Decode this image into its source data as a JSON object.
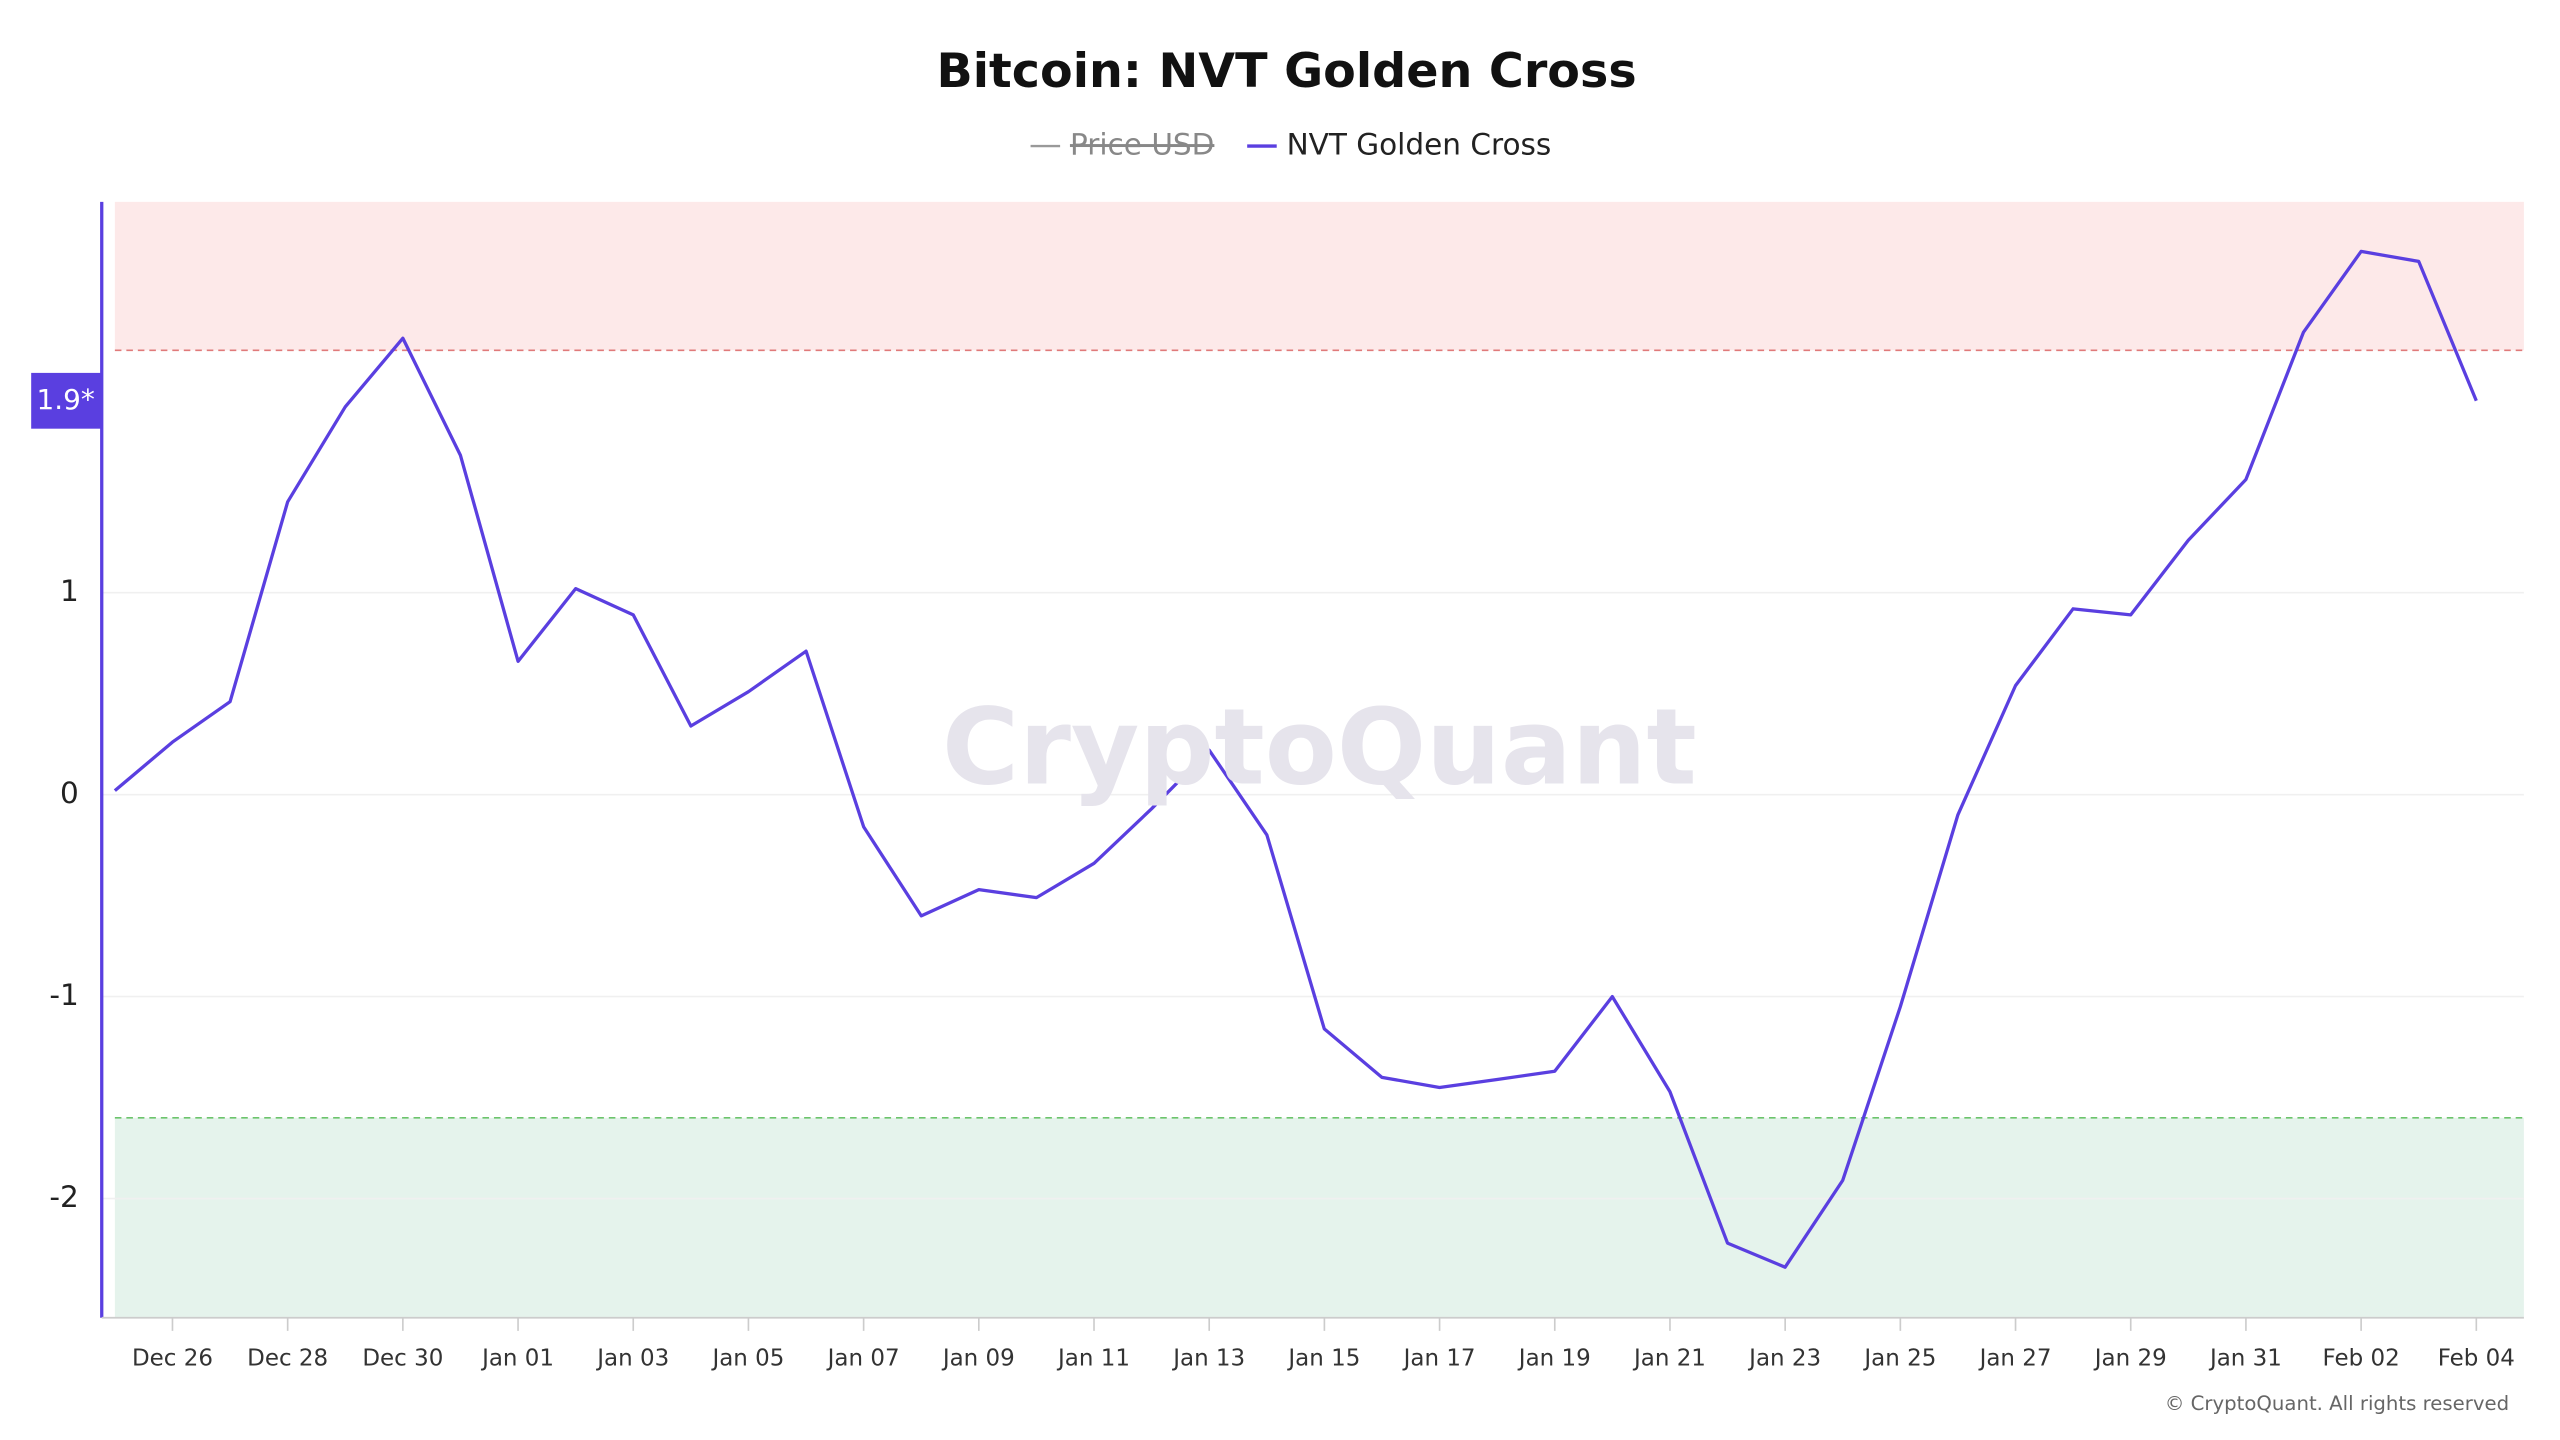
{
  "chart_data": {
    "type": "line",
    "title": "Bitcoin: NVT Golden Cross",
    "hidden_series": {
      "name": "Price USD",
      "color": "#999999"
    },
    "categories": [
      null,
      "Dec 26",
      null,
      "Dec 28",
      null,
      "Dec 30",
      null,
      "Jan 01",
      null,
      "Jan 03",
      null,
      "Jan 05",
      null,
      "Jan 07",
      null,
      "Jan 09",
      null,
      "Jan 11",
      null,
      "Jan 13",
      null,
      "Jan 15",
      null,
      "Jan 17",
      null,
      "Jan 19",
      null,
      "Jan 21",
      null,
      "Jan 23",
      null,
      "Jan 25",
      null,
      "Jan 27",
      null,
      "Jan 29",
      null,
      "Jan 31",
      null,
      "Feb 02",
      null,
      "Feb 04"
    ],
    "series": [
      {
        "name": "NVT Golden Cross",
        "color": "#5a3fe0",
        "values": [
          0.02,
          0.26,
          0.46,
          1.45,
          1.92,
          2.26,
          1.68,
          0.66,
          1.02,
          0.89,
          0.34,
          0.51,
          0.71,
          -0.16,
          -0.6,
          -0.47,
          -0.51,
          -0.34,
          -0.07,
          0.22,
          -0.2,
          -1.16,
          -1.4,
          -1.45,
          -1.41,
          -1.37,
          -1.0,
          -1.47,
          -2.22,
          -2.34,
          -1.91,
          -1.05,
          -0.1,
          0.54,
          0.92,
          0.89,
          1.26,
          1.56,
          2.29,
          2.69,
          2.64,
          1.95
        ]
      }
    ],
    "last_value_label": {
      "value": 1.95,
      "label": "1.9*"
    },
    "upper_threshold": 2.2,
    "lower_threshold": -1.6,
    "ylim": [
      -2.59,
      2.935
    ],
    "yticks": [
      -2,
      -1,
      0,
      1
    ],
    "grid": true,
    "watermark": "CryptoQuant",
    "footer": "© CryptoQuant. All rights reserved"
  }
}
